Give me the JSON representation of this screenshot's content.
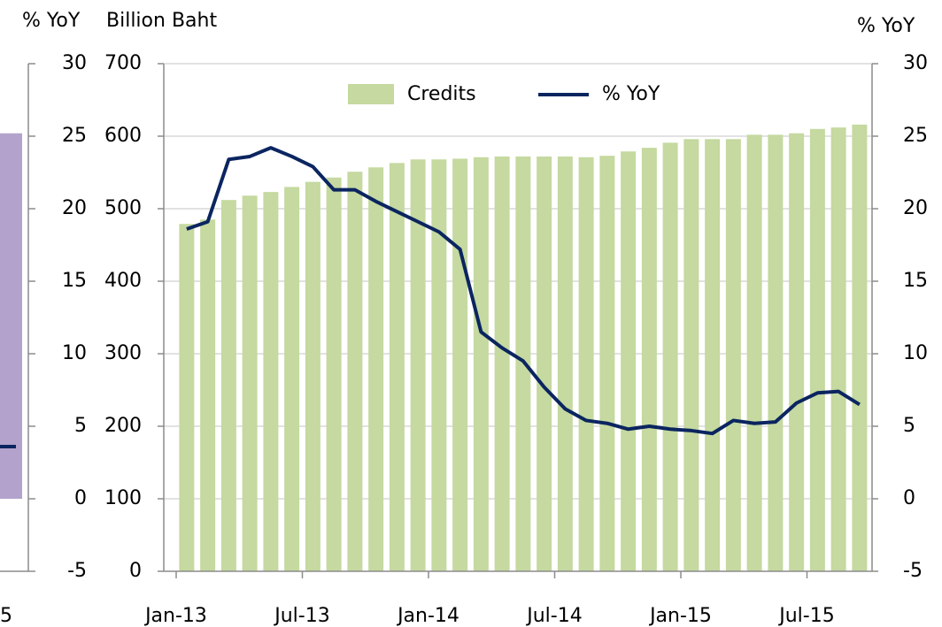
{
  "chart_data": [
    {
      "type": "bar",
      "ylabel": "% YoY",
      "categories": [
        "5"
      ],
      "ylim": [
        -5,
        30
      ],
      "yticks": [
        -5,
        0,
        5,
        10,
        15,
        20,
        25,
        30
      ],
      "series": [
        {
          "type": "bar",
          "color": "#b3a2cc",
          "values": [
            25.2
          ]
        },
        {
          "type": "line",
          "color": "#0b2560",
          "values": [
            3.6
          ]
        }
      ]
    },
    {
      "type": "bar",
      "ylabel": "Billion Baht",
      "y2label": "% YoY",
      "grid": true,
      "legend": "top",
      "categories": [
        "Jan-13",
        null,
        null,
        null,
        null,
        null,
        "Jul-13",
        null,
        null,
        null,
        null,
        null,
        "Jan-14",
        null,
        null,
        null,
        null,
        null,
        "Jul-14",
        null,
        null,
        null,
        null,
        null,
        "Jan-15",
        null,
        null,
        null,
        null,
        null,
        "Jul-15",
        null,
        null
      ],
      "ylim": [
        0,
        700
      ],
      "yticks": [
        0,
        100,
        200,
        300,
        400,
        500,
        600,
        700
      ],
      "y2lim": [
        -5,
        30
      ],
      "y2ticks": [
        -5,
        0,
        5,
        10,
        15,
        20,
        25,
        30
      ],
      "series": [
        {
          "name": "Credits",
          "type": "bar",
          "color": "#c5d9a0",
          "values": [
            479,
            485,
            512,
            518,
            523,
            530,
            537,
            543,
            551,
            557,
            563,
            568,
            568,
            569,
            571,
            572,
            572,
            572,
            572,
            571,
            573,
            579,
            584,
            591,
            596,
            596,
            596,
            602,
            602,
            604,
            610,
            612,
            616
          ]
        },
        {
          "name": "% YoY",
          "type": "line",
          "axis": "y2",
          "color": "#0b2560",
          "values": [
            18.6,
            19.1,
            23.4,
            23.6,
            24.2,
            23.6,
            22.9,
            21.3,
            21.3,
            20.5,
            19.8,
            19.1,
            18.4,
            17.2,
            11.5,
            10.4,
            9.5,
            7.7,
            6.2,
            5.4,
            5.2,
            4.8,
            5.0,
            4.8,
            4.7,
            4.5,
            5.4,
            5.2,
            5.3,
            6.6,
            7.3,
            7.4,
            6.5
          ]
        }
      ]
    }
  ]
}
